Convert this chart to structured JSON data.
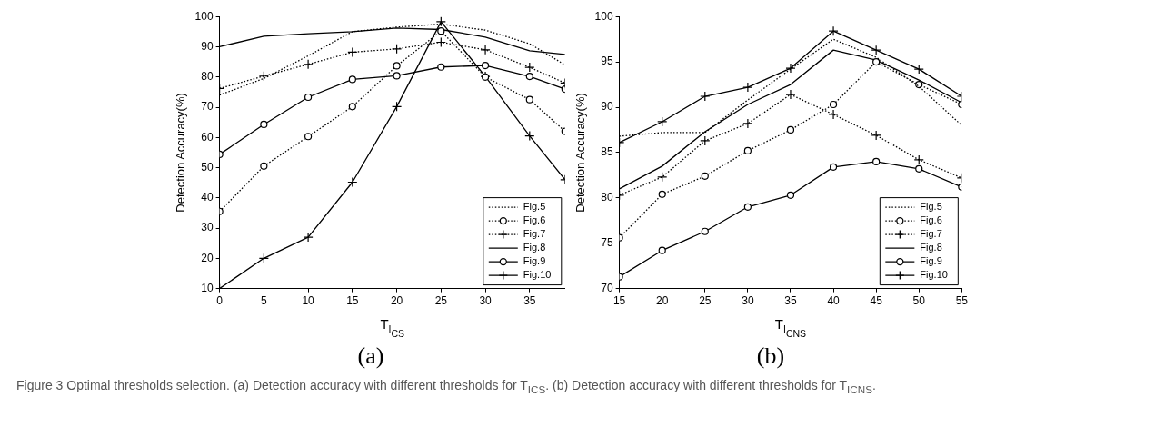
{
  "chart_data": [
    {
      "type": "line",
      "xlabel": "T$_{I}$$_{CS}$",
      "ylabel": "Detection Accuracy(%)",
      "annotations": [
        "(a)",
        "Figure 3 Optimal thresholds selection. (a) Detection accuracy with different thresholds for T$_{I}$$_{CS}$. (b) Detection accuracy with different thresholds for T$_{I}$$_{CNS}$."
      ],
      "x": [
        0,
        5,
        10,
        15,
        20,
        25,
        30,
        35,
        39
      ],
      "xlim": [
        0,
        39
      ],
      "xticks": [
        0,
        5,
        10,
        15,
        20,
        25,
        30,
        35
      ],
      "ylim": [
        10,
        100
      ],
      "yticks": [
        10,
        20,
        30,
        40,
        50,
        60,
        70,
        80,
        90,
        100
      ],
      "grid": false,
      "legend": "bottom right",
      "series": [
        {
          "name": "Fig.5",
          "color": "#000000",
          "line_style": "dotted",
          "marker": "none",
          "values": [
            74,
            79.5,
            87,
            95,
            96.5,
            97.5,
            95.5,
            91,
            84
          ]
        },
        {
          "name": "Fig.6",
          "color": "#000000",
          "line_style": "dotted",
          "marker": "circle",
          "values": [
            35.5,
            50.5,
            60.3,
            70.2,
            83.7,
            95.2,
            80,
            72.5,
            62
          ]
        },
        {
          "name": "Fig.7",
          "color": "#000000",
          "line_style": "dotted",
          "marker": "cross",
          "values": [
            76.2,
            80.3,
            84.2,
            88.2,
            89.3,
            91.5,
            89,
            83.2,
            78
          ]
        },
        {
          "name": "Fig.8",
          "color": "#000000",
          "line_style": "solid",
          "marker": "none",
          "values": [
            90,
            93.5,
            94.3,
            95,
            96.2,
            95.7,
            93.2,
            88.7,
            87.5
          ]
        },
        {
          "name": "Fig.9",
          "color": "#000000",
          "line_style": "solid",
          "marker": "circle",
          "values": [
            54.4,
            64.3,
            73.3,
            79.2,
            80.4,
            83.3,
            83.8,
            80.2,
            76
          ]
        },
        {
          "name": "Fig.10",
          "color": "#000000",
          "line_style": "solid",
          "marker": "cross",
          "values": [
            10,
            20,
            27,
            45.2,
            70.2,
            98.3,
            80.2,
            60.5,
            46
          ]
        }
      ]
    },
    {
      "type": "line",
      "xlabel": "T$_{I}$$_{CNS}$",
      "ylabel": "Detection Accuracy(%)",
      "annotations": [
        "(b)"
      ],
      "x": [
        15,
        20,
        25,
        30,
        35,
        40,
        45,
        50,
        55
      ],
      "xlim": [
        15,
        55
      ],
      "xticks": [
        15,
        20,
        25,
        30,
        35,
        40,
        45,
        50,
        55
      ],
      "ylim": [
        70,
        100
      ],
      "yticks": [
        70,
        75,
        80,
        85,
        90,
        95,
        100
      ],
      "grid": false,
      "legend": "bottom right",
      "series": [
        {
          "name": "Fig.5",
          "color": "#000000",
          "line_style": "dotted",
          "marker": "none",
          "values": [
            86.8,
            87.2,
            87.2,
            90.8,
            94.2,
            97.5,
            95.5,
            92.3,
            88
          ]
        },
        {
          "name": "Fig.6",
          "color": "#000000",
          "line_style": "dotted",
          "marker": "circle",
          "values": [
            75.6,
            80.4,
            82.4,
            85.2,
            87.5,
            90.3,
            95,
            92.5,
            90.3
          ]
        },
        {
          "name": "Fig.7",
          "color": "#000000",
          "line_style": "dotted",
          "marker": "cross",
          "values": [
            80.3,
            82.3,
            86.3,
            88.2,
            91.4,
            89.2,
            86.9,
            84.2,
            82.2
          ]
        },
        {
          "name": "Fig.8",
          "color": "#000000",
          "line_style": "solid",
          "marker": "none",
          "values": [
            81,
            83.5,
            87.3,
            90.3,
            92.5,
            96.3,
            95.2,
            93,
            90.5
          ]
        },
        {
          "name": "Fig.9",
          "color": "#000000",
          "line_style": "solid",
          "marker": "circle",
          "values": [
            71.3,
            74.2,
            76.3,
            79,
            80.3,
            83.4,
            84,
            83.2,
            81.2
          ]
        },
        {
          "name": "Fig.10",
          "color": "#000000",
          "line_style": "solid",
          "marker": "cross",
          "values": [
            86.1,
            88.4,
            91.2,
            92.2,
            94.3,
            98.4,
            96.3,
            94.2,
            91.2
          ]
        }
      ]
    }
  ]
}
